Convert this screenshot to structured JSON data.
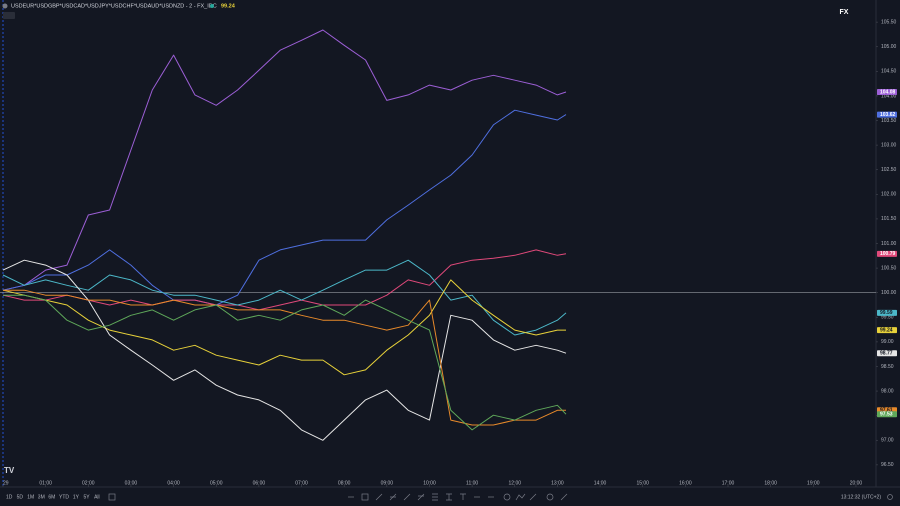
{
  "header": {
    "symbol": "USDEUR*USDGBP*USDCAD*USDJPY*USDCHF*USDAUD*USDNZD - 2 - FX_IDC",
    "value": "99.24",
    "badge": "FX"
  },
  "toolbar": {
    "ranges": [
      "1D",
      "5D",
      "1M",
      "3M",
      "6M",
      "YTD",
      "1Y",
      "5Y",
      "All"
    ],
    "clock": "13:12:32 (UTC+2)"
  },
  "chart_data": {
    "type": "line",
    "x": [
      0,
      0.5,
      1,
      1.5,
      2,
      2.5,
      3,
      3.5,
      4,
      4.5,
      5,
      5.5,
      6,
      6.5,
      7,
      7.5,
      8,
      8.5,
      9,
      9.5,
      10,
      10.5,
      11,
      11.5,
      12,
      12.5,
      13,
      13.2
    ],
    "xlim": [
      0,
      20.47
    ],
    "xticks": [
      {
        "value": 0,
        "label": "29"
      },
      {
        "value": 1,
        "label": "01:00"
      },
      {
        "value": 2,
        "label": "02:00"
      },
      {
        "value": 3,
        "label": "03:00"
      },
      {
        "value": 4,
        "label": "04:00"
      },
      {
        "value": 5,
        "label": "05:00"
      },
      {
        "value": 6,
        "label": "06:00"
      },
      {
        "value": 7,
        "label": "07:00"
      },
      {
        "value": 8,
        "label": "08:00"
      },
      {
        "value": 9,
        "label": "09:00"
      },
      {
        "value": 10,
        "label": "10:00"
      },
      {
        "value": 11,
        "label": "11:00"
      },
      {
        "value": 12,
        "label": "12:00"
      },
      {
        "value": 13,
        "label": "13:00"
      },
      {
        "value": 14,
        "label": "14:00"
      },
      {
        "value": 15,
        "label": "15:00"
      },
      {
        "value": 16,
        "label": "16:00"
      },
      {
        "value": 17,
        "label": "17:00"
      },
      {
        "value": 18,
        "label": "18:00"
      },
      {
        "value": 19,
        "label": "19:00"
      },
      {
        "value": 20,
        "label": "20:00"
      }
    ],
    "ylim": [
      96.05,
      105.95
    ],
    "yticks": [
      {
        "value": 96.5,
        "label": "96.50"
      },
      {
        "value": 97,
        "label": "97.00"
      },
      {
        "value": 97.5,
        "label": "97.50"
      },
      {
        "value": 98,
        "label": "98.00"
      },
      {
        "value": 98.5,
        "label": "98.50"
      },
      {
        "value": 99,
        "label": "99.00"
      },
      {
        "value": 99.5,
        "label": "99.50"
      },
      {
        "value": 100,
        "label": "100.00"
      },
      {
        "value": 100.5,
        "label": "100.50"
      },
      {
        "value": 101,
        "label": "101.00"
      },
      {
        "value": 101.5,
        "label": "101.50"
      },
      {
        "value": 102,
        "label": "102.00"
      },
      {
        "value": 102.5,
        "label": "102.50"
      },
      {
        "value": 103,
        "label": "103.00"
      },
      {
        "value": 103.5,
        "label": "103.50"
      },
      {
        "value": 104,
        "label": "104.00"
      },
      {
        "value": 104.5,
        "label": "104.50"
      },
      {
        "value": 105,
        "label": "105.00"
      },
      {
        "value": 105.5,
        "label": "105.50"
      }
    ],
    "reference_line": 100,
    "series": [
      {
        "color": "#9c5fd6",
        "values": [
          100.05,
          100.15,
          100.46,
          100.56,
          101.58,
          101.68,
          102.9,
          104.12,
          104.83,
          104.02,
          103.81,
          104.12,
          104.52,
          104.93,
          105.13,
          105.34,
          105.03,
          104.73,
          103.91,
          104.02,
          104.22,
          104.12,
          104.32,
          104.42,
          104.32,
          104.22,
          104.02,
          104.08
        ]
      },
      {
        "color": "#4f6fe0",
        "values": [
          100.05,
          100.15,
          100.36,
          100.36,
          100.56,
          100.87,
          100.56,
          100.15,
          99.85,
          99.85,
          99.75,
          99.95,
          100.66,
          100.87,
          100.97,
          101.07,
          101.07,
          101.07,
          101.48,
          101.78,
          102.09,
          102.39,
          102.8,
          103.41,
          103.71,
          103.61,
          103.51,
          103.62
        ]
      },
      {
        "color": "#e0497a",
        "values": [
          99.95,
          99.85,
          99.85,
          99.95,
          99.85,
          99.75,
          99.85,
          99.75,
          99.85,
          99.85,
          99.75,
          99.75,
          99.65,
          99.75,
          99.85,
          99.75,
          99.75,
          99.75,
          99.95,
          100.26,
          100.15,
          100.56,
          100.66,
          100.7,
          100.76,
          100.87,
          100.76,
          100.79
        ]
      },
      {
        "color": "#4cb8c9",
        "values": [
          100.36,
          100.15,
          100.26,
          100.15,
          100.05,
          100.36,
          100.26,
          100.05,
          99.95,
          99.95,
          99.85,
          99.75,
          99.85,
          100.05,
          99.85,
          100.05,
          100.26,
          100.46,
          100.46,
          100.66,
          100.36,
          99.85,
          99.95,
          99.44,
          99.14,
          99.24,
          99.44,
          99.59
        ]
      },
      {
        "color": "#e8d23a",
        "values": [
          100.05,
          99.95,
          99.85,
          99.75,
          99.44,
          99.24,
          99.14,
          99.04,
          98.83,
          98.93,
          98.73,
          98.63,
          98.53,
          98.73,
          98.63,
          98.63,
          98.33,
          98.43,
          98.83,
          99.14,
          99.54,
          100.26,
          99.85,
          99.54,
          99.24,
          99.14,
          99.24,
          99.24
        ]
      },
      {
        "color": "#e6e6e6",
        "values": [
          100.46,
          100.66,
          100.56,
          100.36,
          99.85,
          99.14,
          98.83,
          98.53,
          98.22,
          98.43,
          98.12,
          97.92,
          97.82,
          97.61,
          97.21,
          97.0,
          97.41,
          97.82,
          98.02,
          97.61,
          97.41,
          99.54,
          99.44,
          99.04,
          98.83,
          98.93,
          98.83,
          98.77
        ]
      },
      {
        "color": "#e88a2a",
        "values": [
          100.05,
          100.05,
          99.95,
          99.95,
          99.85,
          99.85,
          99.75,
          99.75,
          99.85,
          99.75,
          99.75,
          99.65,
          99.65,
          99.65,
          99.54,
          99.44,
          99.44,
          99.34,
          99.24,
          99.34,
          99.85,
          97.41,
          97.31,
          97.31,
          97.41,
          97.41,
          97.61,
          97.61
        ]
      },
      {
        "color": "#5fa85a",
        "values": [
          99.95,
          99.95,
          99.85,
          99.44,
          99.24,
          99.34,
          99.54,
          99.65,
          99.44,
          99.65,
          99.75,
          99.44,
          99.54,
          99.44,
          99.65,
          99.75,
          99.54,
          99.85,
          99.65,
          99.44,
          99.24,
          97.61,
          97.21,
          97.51,
          97.41,
          97.61,
          97.71,
          97.53
        ]
      }
    ]
  }
}
